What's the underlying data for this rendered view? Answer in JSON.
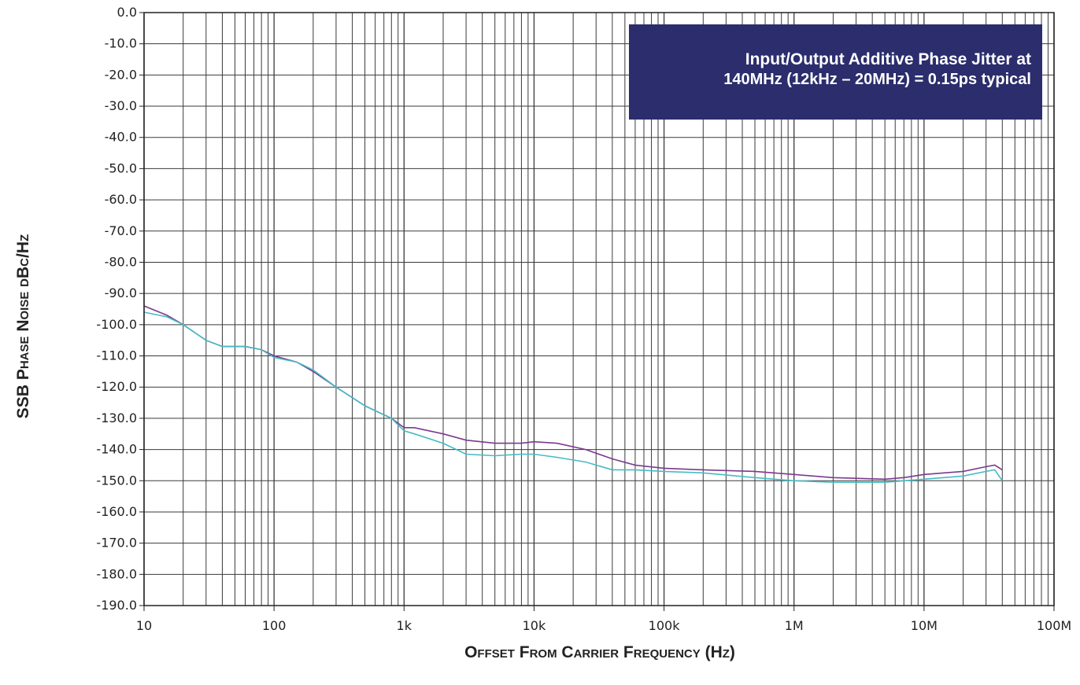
{
  "chart_data": {
    "type": "line",
    "title": "",
    "xlabel": "Offset From Carrier Frequency (Hz)",
    "ylabel": "SSB Phase Noise dBc/Hz",
    "x_scale": "log",
    "xlim": [
      10,
      100000000
    ],
    "ylim": [
      -190,
      0
    ],
    "x_ticks": [
      10,
      100,
      1000,
      10000,
      100000,
      1000000,
      10000000,
      100000000
    ],
    "x_tick_labels": [
      "10",
      "100",
      "1k",
      "10k",
      "100k",
      "1M",
      "10M",
      "100M"
    ],
    "y_ticks": [
      0,
      -10,
      -20,
      -30,
      -40,
      -50,
      -60,
      -70,
      -80,
      -90,
      -100,
      -110,
      -120,
      -130,
      -140,
      -150,
      -160,
      -170,
      -180,
      -190
    ],
    "y_tick_labels": [
      "0.0",
      "-10.0",
      "-20.0",
      "-30.0",
      "-40.0",
      "-50.0",
      "-60.0",
      "-70.0",
      "-80.0",
      "-90.0",
      "-100.0",
      "-110.0",
      "-120.0",
      "-130.0",
      "-140.0",
      "-150.0",
      "-160.0",
      "-170.0",
      "-180.0",
      "-190.0"
    ],
    "grid": true,
    "annotation": {
      "line1": "Input/Output Additive Phase Jitter at",
      "line2": "140MHz (12kHz – 20MHz) = 0.15ps typical"
    },
    "series": [
      {
        "color": "#7b3a8e",
        "x": [
          10,
          15,
          20,
          30,
          40,
          60,
          80,
          100,
          150,
          200,
          300,
          500,
          800,
          1000,
          1200,
          2000,
          3000,
          5000,
          8000,
          10000,
          15000,
          25000,
          40000,
          60000,
          100000,
          200000,
          500000,
          1000000,
          2000000,
          5000000,
          7000000,
          10000000,
          20000000,
          30000000,
          35000000,
          40000000
        ],
        "y": [
          -94,
          -97,
          -100,
          -105,
          -107,
          -107,
          -108,
          -110,
          -112,
          -115,
          -120,
          -126,
          -130,
          -133,
          -133,
          -135,
          -137,
          -138,
          -138,
          -137.5,
          -138,
          -140,
          -143,
          -145,
          -146,
          -146.5,
          -147,
          -148,
          -149,
          -149.5,
          -149,
          -148,
          -147,
          -145.5,
          -145,
          -146.5
        ]
      },
      {
        "color": "#45bcc4",
        "x": [
          10,
          15,
          20,
          30,
          40,
          60,
          80,
          100,
          150,
          200,
          300,
          500,
          800,
          1000,
          1200,
          2000,
          3000,
          5000,
          8000,
          10000,
          15000,
          25000,
          40000,
          60000,
          100000,
          200000,
          500000,
          1000000,
          2000000,
          5000000,
          7000000,
          10000000,
          20000000,
          30000000,
          35000000,
          40000000
        ],
        "y": [
          -96,
          -97.5,
          -100,
          -105,
          -107,
          -107,
          -108,
          -110.5,
          -112,
          -114.5,
          -120,
          -126,
          -130,
          -134,
          -135,
          -138,
          -141.5,
          -142,
          -141.5,
          -141.5,
          -142.5,
          -144,
          -146.5,
          -146.5,
          -147,
          -147.5,
          -149,
          -150,
          -150.5,
          -150.5,
          -150,
          -149.5,
          -148.5,
          -147,
          -146.5,
          -150
        ]
      }
    ]
  }
}
